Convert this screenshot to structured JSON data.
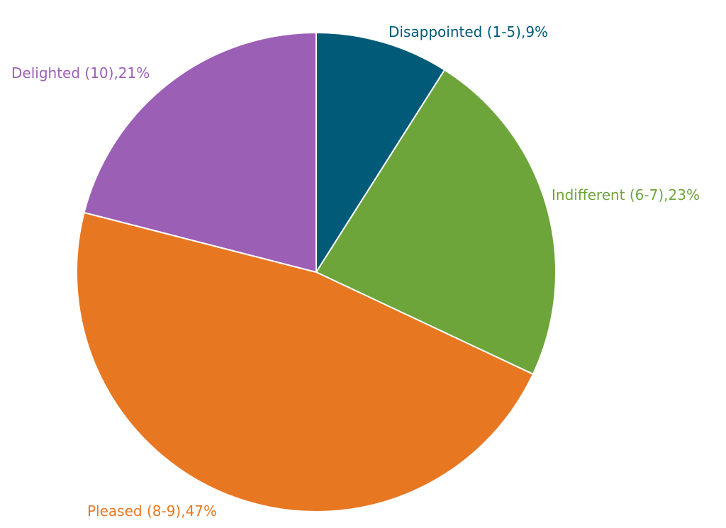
{
  "chart_data": {
    "type": "pie",
    "start_angle_deg": 0,
    "direction": "clockwise",
    "slices": [
      {
        "label": "Disappointed (1-5),9%",
        "category": "Disappointed (1-5)",
        "value": 9,
        "color": "#005A78"
      },
      {
        "label": "Indifferent (6-7),23%",
        "category": "Indifferent (6-7)",
        "value": 23,
        "color": "#6DA53A"
      },
      {
        "label": "Pleased (8-9),47%",
        "category": "Pleased (8-9)",
        "value": 47,
        "color": "#E87722"
      },
      {
        "label": "Delighted (10),21%",
        "category": "Delighted (10)",
        "value": 21,
        "color": "#9B5FB5"
      }
    ]
  }
}
